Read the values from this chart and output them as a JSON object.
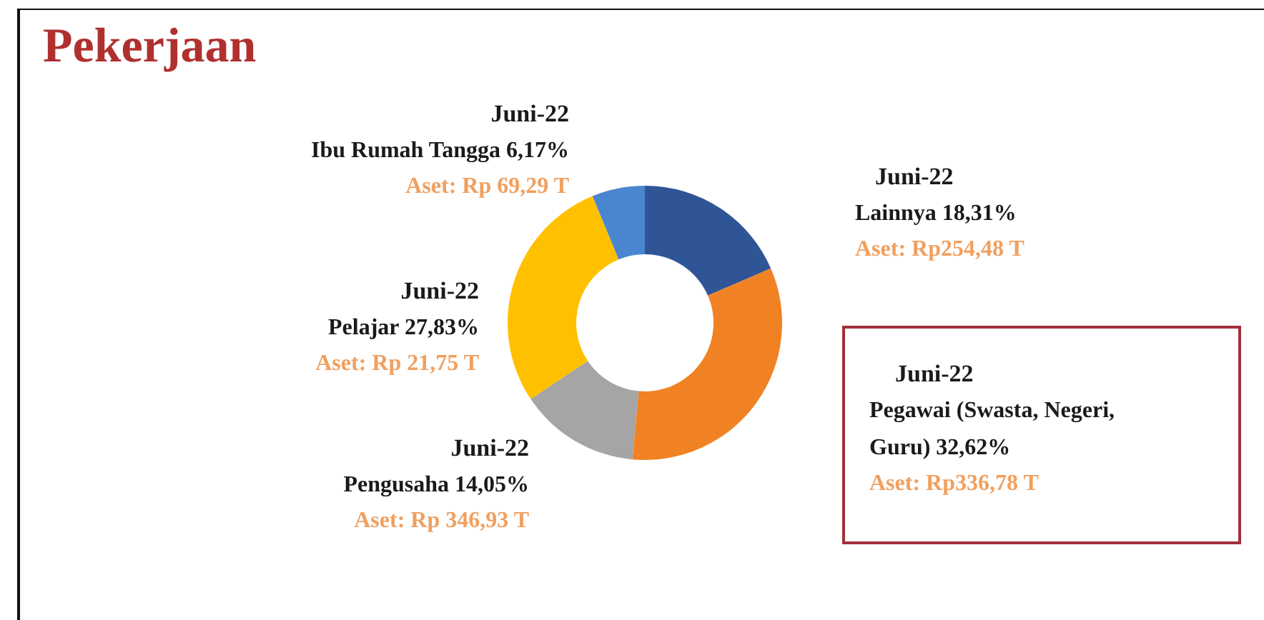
{
  "chart_data": {
    "type": "donut",
    "title": "Pekerjaan",
    "categories": [
      "Lainnya",
      "Pegawai (Swasta, Negeri, Guru)",
      "Pengusaha",
      "Pelajar",
      "Ibu Rumah Tangga"
    ],
    "values": [
      18.31,
      32.62,
      14.05,
      27.83,
      6.17
    ],
    "value_labels": [
      "18,31%",
      "32,62%",
      "14,05%",
      "27,83%",
      "6,17%"
    ],
    "colors": [
      "#2f5597",
      "#f08224",
      "#a5a5a5",
      "#ffc000",
      "#4a86d0"
    ],
    "annotations": [
      "Juni-22",
      "Aset: Rp254,48 T",
      "Juni-22",
      "Aset: Rp336,78 T",
      "Juni-22",
      "Aset: Rp 346,93 T",
      "Juni-22",
      "Aset: Rp 21,75 T",
      "Juni-22",
      "Aset: Rp 69,29 T"
    ],
    "legend": false
  }
}
